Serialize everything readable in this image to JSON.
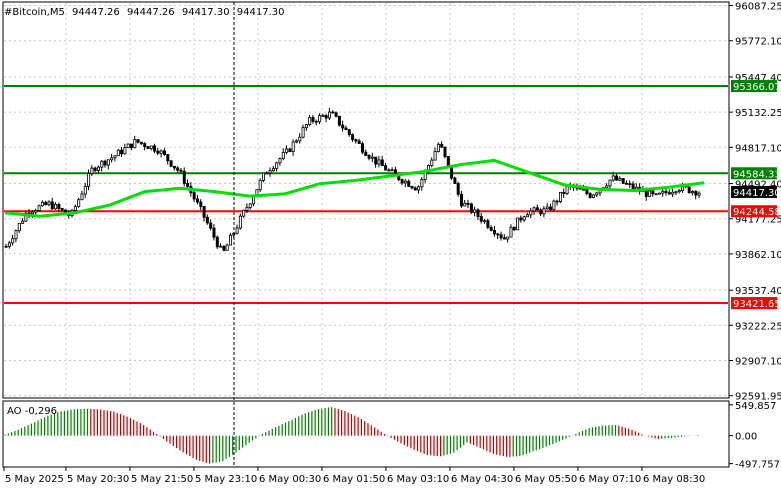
{
  "chart_data": {
    "type": "candlestick",
    "header": {
      "symbol": "#Bitcoin,M5",
      "open": "94447.26",
      "high": "94447.26",
      "low": "94417.30",
      "close": "94417.30"
    },
    "price_axis": {
      "ylim": [
        92580,
        96110
      ],
      "ticks": [
        "96087.25",
        "95772.10",
        "95447.40",
        "95132.25",
        "94817.10",
        "94492.40",
        "94177.25",
        "93862.10",
        "93537.40",
        "93222.25",
        "92907.10",
        "92591.95"
      ]
    },
    "time_axis": {
      "ticks": [
        "5 May 2025",
        "5 May 20:30",
        "5 May 21:50",
        "5 May 23:10",
        "6 May 00:30",
        "6 May 01:50",
        "6 May 03:10",
        "6 May 04:30",
        "6 May 05:50",
        "6 May 07:10",
        "6 May 08:30"
      ]
    },
    "levels": [
      {
        "label": "95366.07",
        "price": 95366.07,
        "color": "#008000"
      },
      {
        "label": "94584.33",
        "price": 94584.33,
        "color": "#008000"
      },
      {
        "label": "94244.58",
        "price": 94244.58,
        "color": "#ff0000"
      },
      {
        "label": "93421.65",
        "price": 93421.65,
        "color": "#ff0000"
      }
    ],
    "last_price_label": "94417.30",
    "moving_average": {
      "color": "#00e000",
      "values": [
        94230,
        94200,
        94230,
        94300,
        94420,
        94450,
        94420,
        94380,
        94400,
        94490,
        94520,
        94560,
        94600,
        94660,
        94700,
        94590,
        94480,
        94440,
        94430,
        94460,
        94500
      ]
    },
    "candles": {
      "up_color": "#000000",
      "down_color": "#000000",
      "close_path": [
        93930,
        94250,
        94310,
        94200,
        94630,
        94740,
        94870,
        94800,
        94600,
        94250,
        93860,
        94240,
        94600,
        94780,
        95050,
        95120,
        94900,
        94700,
        94560,
        94450,
        94860,
        94330,
        94170,
        94000,
        94240,
        94250,
        94470,
        94390,
        94540,
        94450,
        94370,
        94460,
        94417
      ]
    },
    "indicator": {
      "label": "AO -0,296",
      "ticks": [
        "549.857",
        "0.00",
        "-497.757"
      ],
      "ylim": [
        -540,
        600
      ],
      "up_color": "#008000",
      "down_color": "#c00000",
      "values": [
        20,
        110,
        220,
        340,
        430,
        470,
        480,
        470,
        430,
        340,
        220,
        60,
        -120,
        -280,
        -420,
        -500,
        -460,
        -300,
        -120,
        40,
        160,
        270,
        390,
        470,
        510,
        440,
        330,
        180,
        20,
        -120,
        -240,
        -340,
        -370,
        -310,
        -120,
        -220,
        -330,
        -380,
        -360,
        -270,
        -180,
        -80,
        30,
        140,
        180,
        190,
        120,
        10,
        -60,
        -40,
        -15,
        10
      ]
    },
    "crosshair_time_label": "5 May 23:10"
  }
}
